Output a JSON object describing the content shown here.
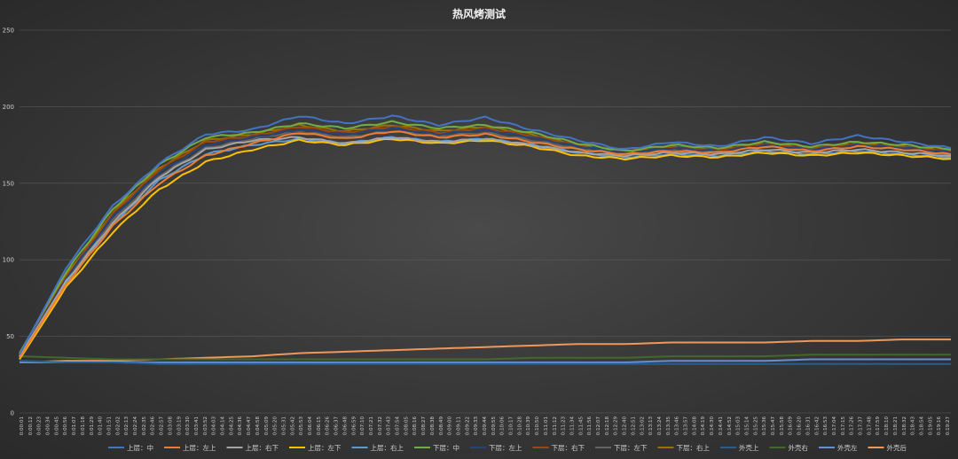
{
  "chart_data": {
    "type": "line",
    "title": "热风烤测试",
    "xlabel": "",
    "ylabel": "",
    "ylim": [
      0,
      250
    ],
    "yticks": [
      0,
      50,
      100,
      150,
      200,
      250
    ],
    "grid": true,
    "legend_position": "bottom",
    "x_tick_labels": [
      "0:00:01",
      "0:00:12",
      "0:00:23",
      "0:00:34",
      "0:00:45",
      "0:00:56",
      "0:01:07",
      "0:01:18",
      "0:01:29",
      "0:01:40",
      "0:01:51",
      "0:02:02",
      "0:02:13",
      "0:02:24",
      "0:02:35",
      "0:02:46",
      "0:02:57",
      "0:03:08",
      "0:03:19",
      "0:03:30",
      "0:03:41",
      "0:03:52",
      "0:04:03",
      "0:04:14",
      "0:04:25",
      "0:04:36",
      "0:04:47",
      "0:04:58",
      "0:05:09",
      "0:05:20",
      "0:05:31",
      "0:05:42",
      "0:05:53",
      "0:06:04",
      "0:06:15",
      "0:06:26",
      "0:06:37",
      "0:06:48",
      "0:06:59",
      "0:07:10",
      "0:07:21",
      "0:07:32",
      "0:07:43",
      "0:07:54",
      "0:08:05",
      "0:08:16",
      "0:08:27",
      "0:08:38",
      "0:08:49",
      "0:09:00",
      "0:09:11",
      "0:09:22",
      "0:09:33",
      "0:09:44",
      "0:09:55",
      "0:10:06",
      "0:10:17",
      "0:10:28",
      "0:10:39",
      "0:10:50",
      "0:11:01",
      "0:11:12",
      "0:11:23",
      "0:11:34",
      "0:11:45",
      "0:11:56",
      "0:12:07",
      "0:12:18",
      "0:12:29",
      "0:12:40",
      "0:12:51",
      "0:13:02",
      "0:13:13",
      "0:13:24",
      "0:13:35",
      "0:13:46",
      "0:13:57",
      "0:14:08",
      "0:14:19",
      "0:14:30",
      "0:14:41",
      "0:14:52",
      "0:15:03",
      "0:15:14",
      "0:15:25",
      "0:15:36",
      "0:15:47",
      "0:15:58",
      "0:16:09",
      "0:16:20",
      "0:16:31",
      "0:16:42",
      "0:16:53",
      "0:17:04",
      "0:17:15",
      "0:17:26",
      "0:17:37",
      "0:17:48",
      "0:17:59",
      "0:18:10",
      "0:18:21",
      "0:18:32",
      "0:18:43",
      "0:18:54",
      "0:19:05",
      "0:19:16",
      "0:19:27"
    ],
    "x": [
      0,
      1,
      2,
      3,
      4,
      5,
      6,
      7,
      8,
      9,
      10,
      11,
      12,
      13,
      14,
      15,
      16,
      17,
      18,
      19,
      20
    ],
    "series": [
      {
        "name": "上层：中",
        "color": "#4472c4",
        "values": [
          38,
          95,
          135,
          163,
          182,
          185,
          194,
          189,
          194,
          188,
          193,
          185,
          178,
          172,
          177,
          174,
          180,
          176,
          181,
          177,
          173
        ]
      },
      {
        "name": "上层：左上",
        "color": "#ed7d31",
        "values": [
          36,
          84,
          122,
          150,
          168,
          176,
          183,
          179,
          184,
          180,
          182,
          177,
          172,
          169,
          171,
          170,
          174,
          171,
          174,
          172,
          169
        ]
      },
      {
        "name": "上层：右下",
        "color": "#a5a5a5",
        "values": [
          37,
          86,
          124,
          154,
          172,
          178,
          180,
          176,
          180,
          177,
          179,
          175,
          170,
          168,
          170,
          169,
          172,
          170,
          172,
          170,
          168
        ]
      },
      {
        "name": "上层：左下",
        "color": "#ffc000",
        "values": [
          35,
          82,
          118,
          146,
          164,
          172,
          178,
          175,
          179,
          176,
          178,
          174,
          168,
          166,
          168,
          167,
          170,
          168,
          170,
          168,
          166
        ]
      },
      {
        "name": "上层：右上",
        "color": "#5b9bd5",
        "values": [
          37,
          85,
          123,
          152,
          169,
          175,
          179,
          176,
          180,
          177,
          179,
          175,
          170,
          167,
          169,
          168,
          171,
          169,
          171,
          169,
          167
        ]
      },
      {
        "name": "下层：中",
        "color": "#70ad47",
        "values": [
          39,
          92,
          133,
          162,
          180,
          183,
          189,
          186,
          190,
          186,
          188,
          183,
          176,
          171,
          175,
          173,
          177,
          174,
          177,
          175,
          172
        ]
      },
      {
        "name": "下层：左上",
        "color": "#264478",
        "values": [
          37,
          88,
          128,
          157,
          175,
          180,
          185,
          182,
          186,
          182,
          185,
          180,
          174,
          170,
          173,
          171,
          175,
          172,
          175,
          173,
          170
        ]
      },
      {
        "name": "下层：右下",
        "color": "#9e480e",
        "values": [
          38,
          89,
          130,
          159,
          177,
          181,
          187,
          183,
          187,
          183,
          186,
          181,
          175,
          170,
          174,
          172,
          176,
          173,
          176,
          174,
          171
        ]
      },
      {
        "name": "下层：左下",
        "color": "#636363",
        "values": [
          36,
          87,
          126,
          155,
          173,
          179,
          184,
          180,
          184,
          181,
          183,
          178,
          173,
          169,
          172,
          171,
          174,
          172,
          174,
          172,
          169
        ]
      },
      {
        "name": "下层：右上",
        "color": "#997300",
        "values": [
          38,
          90,
          131,
          160,
          178,
          182,
          188,
          184,
          188,
          184,
          187,
          182,
          175,
          171,
          174,
          172,
          176,
          173,
          176,
          174,
          171
        ]
      },
      {
        "name": "外壳上",
        "color": "#255e91",
        "values": [
          34,
          33,
          33,
          32,
          32,
          32,
          32,
          32,
          32,
          32,
          32,
          32,
          32,
          32,
          32,
          32,
          32,
          32,
          32,
          32,
          32
        ]
      },
      {
        "name": "外壳右",
        "color": "#43682b",
        "values": [
          37,
          36,
          35,
          35,
          35,
          35,
          35,
          35,
          35,
          35,
          35,
          36,
          36,
          36,
          37,
          37,
          37,
          38,
          38,
          38,
          38
        ]
      },
      {
        "name": "外壳左",
        "color": "#698ed0",
        "values": [
          33,
          33,
          33,
          33,
          33,
          33,
          33,
          33,
          33,
          33,
          33,
          33,
          33,
          33,
          34,
          34,
          34,
          35,
          35,
          35,
          35
        ]
      },
      {
        "name": "外壳后",
        "color": "#f1975a",
        "values": [
          33,
          34,
          34,
          35,
          36,
          37,
          39,
          40,
          41,
          42,
          43,
          44,
          45,
          45,
          46,
          46,
          46,
          47,
          47,
          48,
          48
        ]
      }
    ]
  }
}
